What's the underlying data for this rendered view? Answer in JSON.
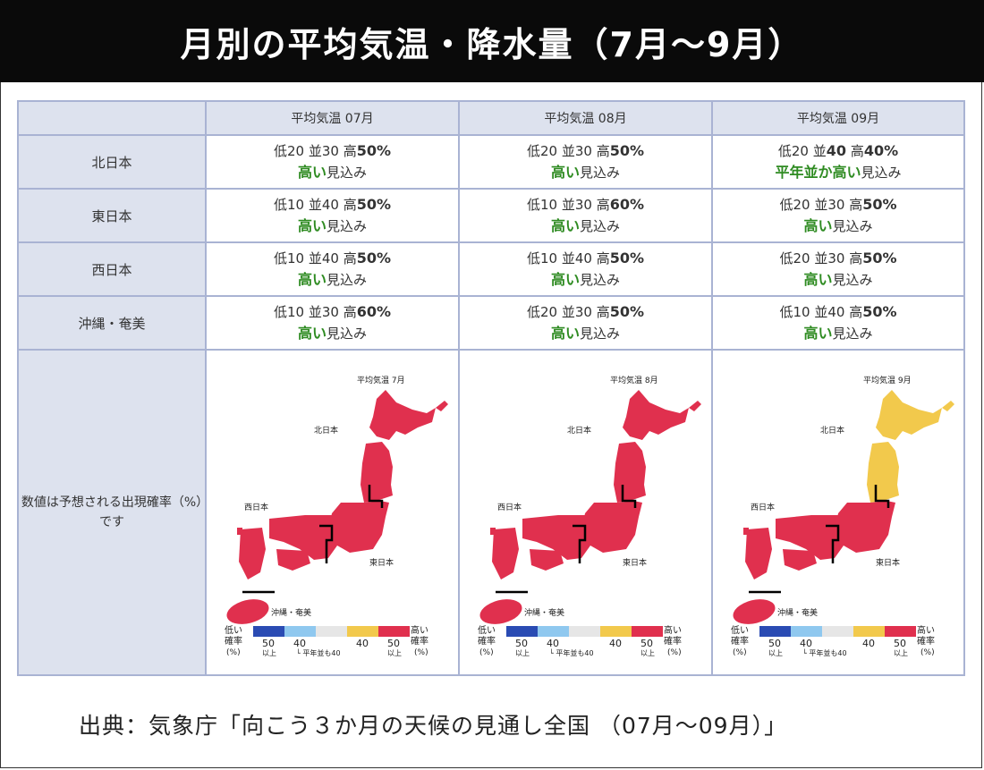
{
  "title": "月別の平均気温・降水量（7月〜9月）",
  "header": {
    "corner": "",
    "columns": [
      "平均気温 07月",
      "平均気温 08月",
      "平均気温 09月"
    ]
  },
  "rows": [
    {
      "region": "北日本",
      "cells": [
        {
          "low": "低20",
          "normal": "並30",
          "high_label": "高",
          "high_val": "50%",
          "bold_pos": "high",
          "trend": "高い",
          "suffix": "見込み"
        },
        {
          "low": "低20",
          "normal": "並30",
          "high_label": "高",
          "high_val": "50%",
          "bold_pos": "high",
          "trend": "高い",
          "suffix": "見込み"
        },
        {
          "low": "低20",
          "normal": "並40",
          "high_label": "高",
          "high_val": "40%",
          "bold_pos": "normal",
          "trend": "平年並か高い",
          "suffix": "見込み"
        }
      ]
    },
    {
      "region": "東日本",
      "cells": [
        {
          "low": "低10",
          "normal": "並40",
          "high_label": "高",
          "high_val": "50%",
          "bold_pos": "high",
          "trend": "高い",
          "suffix": "見込み"
        },
        {
          "low": "低10",
          "normal": "並30",
          "high_label": "高",
          "high_val": "60%",
          "bold_pos": "high",
          "trend": "高い",
          "suffix": "見込み"
        },
        {
          "low": "低20",
          "normal": "並30",
          "high_label": "高",
          "high_val": "50%",
          "bold_pos": "high",
          "trend": "高い",
          "suffix": "見込み"
        }
      ]
    },
    {
      "region": "西日本",
      "cells": [
        {
          "low": "低10",
          "normal": "並40",
          "high_label": "高",
          "high_val": "50%",
          "bold_pos": "high",
          "trend": "高い",
          "suffix": "見込み"
        },
        {
          "low": "低10",
          "normal": "並40",
          "high_label": "高",
          "high_val": "50%",
          "bold_pos": "high",
          "trend": "高い",
          "suffix": "見込み"
        },
        {
          "low": "低20",
          "normal": "並30",
          "high_label": "高",
          "high_val": "50%",
          "bold_pos": "high",
          "trend": "高い",
          "suffix": "見込み"
        }
      ]
    },
    {
      "region": "沖縄・奄美",
      "cells": [
        {
          "low": "低10",
          "normal": "並30",
          "high_label": "高",
          "high_val": "60%",
          "bold_pos": "high",
          "trend": "高い",
          "suffix": "見込み"
        },
        {
          "low": "低20",
          "normal": "並30",
          "high_label": "高",
          "high_val": "50%",
          "bold_pos": "high",
          "trend": "高い",
          "suffix": "見込み"
        },
        {
          "low": "低10",
          "normal": "並40",
          "high_label": "高",
          "high_val": "50%",
          "bold_pos": "high",
          "trend": "高い",
          "suffix": "見込み"
        }
      ]
    }
  ],
  "map_note": "数値は予想される出現確率（%）です",
  "maps": [
    {
      "title": "平均気温 7月",
      "north": "北日本",
      "west": "西日本",
      "east": "東日本",
      "okinawa": "沖縄・奄美",
      "north_color": "#e0304e",
      "rest_color": "#e0304e"
    },
    {
      "title": "平均気温 8月",
      "north": "北日本",
      "west": "西日本",
      "east": "東日本",
      "okinawa": "沖縄・奄美",
      "north_color": "#e0304e",
      "rest_color": "#e0304e"
    },
    {
      "title": "平均気温 9月",
      "north": "北日本",
      "west": "西日本",
      "east": "東日本",
      "okinawa": "沖縄・奄美",
      "north_color": "#f2c94c",
      "rest_color": "#e0304e"
    }
  ],
  "legend": {
    "low_title": "低い",
    "low_sub1": "確率",
    "low_sub2": "(%)",
    "high_title": "高い",
    "high_sub1": "確率",
    "high_sub2": "(%)",
    "labels_top": [
      "50",
      "40",
      "40",
      "50"
    ],
    "labels_bottom": [
      "以上",
      "平年並も40",
      "以上"
    ],
    "colors": [
      "#2a4bb3",
      "#8fc8ef",
      "#e6e6e6",
      "#f2c94c",
      "#e0304e"
    ]
  },
  "footer": "出典：気象庁「向こう３か月の天候の見通し全国 （07月〜09月）」"
}
